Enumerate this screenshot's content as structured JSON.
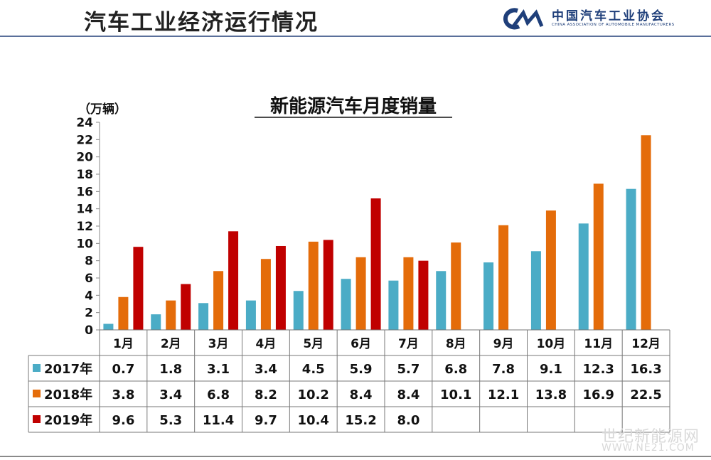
{
  "header": {
    "title": "汽车工业经济运行情况",
    "logo_cn": "中国汽车工业协会",
    "logo_en": "CHINA ASSOCIATION OF AUTOMOBILE MANUFACTURERS"
  },
  "watermark": {
    "line1": "世纪新能源网",
    "line2": "WWW.NE21.COM"
  },
  "colors": {
    "s2017": "#4bacc6",
    "s2018": "#e46c0a",
    "s2019": "#c00000",
    "logo": "#1f3f7a"
  },
  "chart_data": {
    "type": "bar",
    "title": "新能源汽车月度销量",
    "ylabel": "（万辆）",
    "ylim": [
      0,
      24
    ],
    "yticks": [
      0,
      2,
      4,
      6,
      8,
      10,
      12,
      14,
      16,
      18,
      20,
      22,
      24
    ],
    "categories": [
      "1月",
      "2月",
      "3月",
      "4月",
      "5月",
      "6月",
      "7月",
      "8月",
      "9月",
      "10月",
      "11月",
      "12月"
    ],
    "series": [
      {
        "name": "2017年",
        "color": "#4bacc6",
        "values": [
          0.7,
          1.8,
          3.1,
          3.4,
          4.5,
          5.9,
          5.7,
          6.8,
          7.8,
          9.1,
          12.3,
          16.3
        ],
        "labels": [
          "0.7",
          "1.8",
          "3.1",
          "3.4",
          "4.5",
          "5.9",
          "5.7",
          "6.8",
          "7.8",
          "9.1",
          "12.3",
          "16.3"
        ]
      },
      {
        "name": "2018年",
        "color": "#e46c0a",
        "values": [
          3.8,
          3.4,
          6.8,
          8.2,
          10.2,
          8.4,
          8.4,
          10.1,
          12.1,
          13.8,
          16.9,
          22.5
        ],
        "labels": [
          "3.8",
          "3.4",
          "6.8",
          "8.2",
          "10.2",
          "8.4",
          "8.4",
          "10.1",
          "12.1",
          "13.8",
          "16.9",
          "22.5"
        ]
      },
      {
        "name": "2019年",
        "color": "#c00000",
        "values": [
          9.6,
          5.3,
          11.4,
          9.7,
          10.4,
          15.2,
          8.0,
          null,
          null,
          null,
          null,
          null
        ],
        "labels": [
          "9.6",
          "5.3",
          "11.4",
          "9.7",
          "10.4",
          "15.2",
          "8.0",
          "",
          "",
          "",
          "",
          ""
        ]
      }
    ],
    "grid": false,
    "legend": "data-table"
  }
}
